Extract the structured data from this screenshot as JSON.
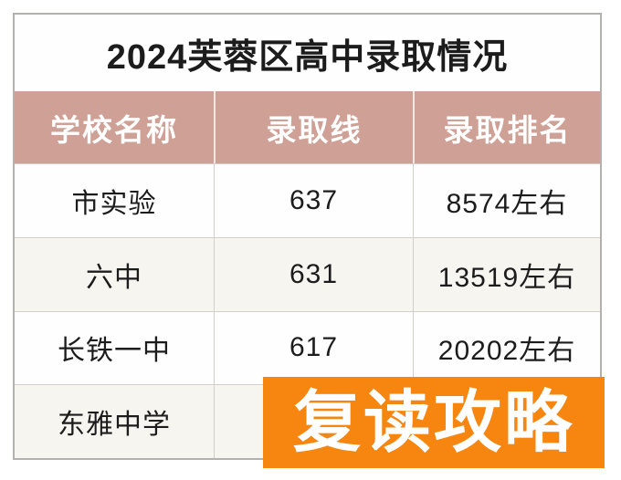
{
  "title": "2024芙蓉区高中录取情况",
  "table": {
    "headers": [
      "学校名称",
      "录取线",
      "录取排名"
    ],
    "rows": [
      {
        "school": "市实验",
        "score": "637",
        "rank": "8574左右"
      },
      {
        "school": "六中",
        "score": "631",
        "rank": "13519左右"
      },
      {
        "school": "长铁一中",
        "score": "617",
        "rank": "20202左右"
      },
      {
        "school": "东雅中学",
        "score": "",
        "rank": ""
      }
    ]
  },
  "overlay": {
    "label": "复读攻略"
  },
  "colors": {
    "header_bg": "#cfa096",
    "header_text": "#ffffff",
    "row_alt_bg": "#f7f5f0",
    "row_plain_bg": "#fefefe",
    "overlay_bg": "#f6860f",
    "overlay_text": "#ffffff",
    "frame_border": "#b3b1ae",
    "cell_text": "#1c1c1c"
  }
}
